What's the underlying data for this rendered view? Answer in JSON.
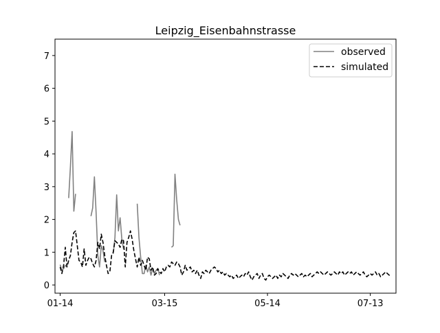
{
  "chart_data": {
    "type": "line",
    "title": "Leipzig_Eisenbahnstrasse",
    "xlabel": "",
    "ylabel": "",
    "x_ticks": [
      "01-14",
      "03-15",
      "05-14",
      "07-13"
    ],
    "y_ticks": [
      0,
      1,
      2,
      3,
      4,
      5,
      6,
      7
    ],
    "ylim": [
      -0.25,
      7.5
    ],
    "legend_position": "top-right",
    "series": [
      {
        "name": "observed",
        "style": "solid",
        "color": "#808080",
        "segments": [
          [
            [
              "01-14",
              0.62
            ],
            [
              "01-15",
              0.45
            ],
            [
              "01-16",
              0.5
            ],
            [
              "01-17",
              0.6
            ],
            [
              "01-18",
              0.55
            ]
          ],
          [
            [
              "01-19",
              2.65
            ],
            [
              "01-20",
              3.6
            ],
            [
              "01-21",
              4.68
            ],
            [
              "01-22",
              2.25
            ],
            [
              "01-23",
              2.78
            ]
          ],
          [
            [
              "02-01",
              2.1
            ],
            [
              "02-02",
              2.35
            ],
            [
              "02-03",
              3.3
            ],
            [
              "02-04",
              2.2
            ],
            [
              "02-05",
              0.9
            ],
            [
              "02-06",
              0.55
            ],
            [
              "02-07",
              1.2
            ],
            [
              "02-08",
              1.05
            ],
            [
              "02-09",
              0.7
            ]
          ],
          [
            [
              "02-14",
              0.95
            ],
            [
              "02-15",
              1.45
            ],
            [
              "02-16",
              2.75
            ],
            [
              "02-17",
              1.65
            ],
            [
              "02-18",
              2.05
            ],
            [
              "02-19",
              1.4
            ],
            [
              "02-20",
              1.1
            ]
          ],
          [
            [
              "02-28",
              2.48
            ],
            [
              "02-29",
              1.45
            ],
            [
              "03-01",
              0.85
            ],
            [
              "03-02",
              0.35
            ],
            [
              "03-03",
              0.35
            ],
            [
              "03-04",
              0.6
            ],
            [
              "03-05",
              0.4
            ],
            [
              "03-06",
              0.55
            ],
            [
              "03-07",
              0.3
            ],
            [
              "03-08",
              0.5
            ],
            [
              "03-09",
              0.35
            ],
            [
              "03-10",
              0.45
            ],
            [
              "03-11",
              0.5
            ],
            [
              "03-12",
              0.3
            ]
          ],
          [
            [
              "03-19",
              1.15
            ],
            [
              "03-20",
              1.2
            ],
            [
              "03-21",
              3.38
            ],
            [
              "03-22",
              2.6
            ],
            [
              "03-23",
              2.0
            ],
            [
              "03-24",
              1.82
            ]
          ]
        ]
      },
      {
        "name": "simulated",
        "style": "dashed",
        "color": "#000000",
        "points": [
          [
            "01-14",
            0.55
          ],
          [
            "01-15",
            0.35
          ],
          [
            "01-16",
            0.6
          ],
          [
            "01-17",
            1.15
          ],
          [
            "01-18",
            0.55
          ],
          [
            "01-19",
            0.75
          ],
          [
            "01-20",
            0.9
          ],
          [
            "01-21",
            1.3
          ],
          [
            "01-22",
            1.6
          ],
          [
            "01-23",
            1.65
          ],
          [
            "01-24",
            1.2
          ],
          [
            "01-25",
            0.75
          ],
          [
            "01-26",
            0.7
          ],
          [
            "01-27",
            0.55
          ],
          [
            "01-28",
            1.1
          ],
          [
            "01-29",
            0.6
          ],
          [
            "01-30",
            0.75
          ],
          [
            "01-31",
            0.85
          ],
          [
            "02-01",
            0.8
          ],
          [
            "02-02",
            0.65
          ],
          [
            "02-03",
            0.55
          ],
          [
            "02-04",
            0.75
          ],
          [
            "02-05",
            1.3
          ],
          [
            "02-06",
            1.1
          ],
          [
            "02-07",
            1.55
          ],
          [
            "02-08",
            1.3
          ],
          [
            "02-09",
            0.9
          ],
          [
            "02-10",
            0.6
          ],
          [
            "02-11",
            0.35
          ],
          [
            "02-12",
            0.4
          ],
          [
            "02-13",
            0.9
          ],
          [
            "02-14",
            1.0
          ],
          [
            "02-15",
            1.35
          ],
          [
            "02-16",
            1.3
          ],
          [
            "02-17",
            1.25
          ],
          [
            "02-18",
            1.15
          ],
          [
            "02-19",
            1.4
          ],
          [
            "02-20",
            1.35
          ],
          [
            "02-21",
            0.55
          ],
          [
            "02-22",
            1.3
          ],
          [
            "02-23",
            1.45
          ],
          [
            "02-24",
            1.65
          ],
          [
            "02-25",
            1.4
          ],
          [
            "02-26",
            1.05
          ],
          [
            "02-27",
            0.8
          ],
          [
            "02-28",
            0.55
          ],
          [
            "02-29",
            0.85
          ],
          [
            "03-01",
            0.6
          ],
          [
            "03-02",
            0.75
          ],
          [
            "03-03",
            0.6
          ],
          [
            "03-04",
            0.45
          ],
          [
            "03-05",
            0.85
          ],
          [
            "03-06",
            0.8
          ],
          [
            "03-07",
            0.45
          ],
          [
            "03-08",
            0.55
          ],
          [
            "03-09",
            0.3
          ],
          [
            "03-10",
            0.35
          ],
          [
            "03-11",
            0.5
          ],
          [
            "03-12",
            0.4
          ],
          [
            "03-13",
            0.35
          ],
          [
            "03-14",
            0.5
          ],
          [
            "03-15",
            0.4
          ],
          [
            "03-16",
            0.55
          ],
          [
            "03-17",
            0.6
          ],
          [
            "03-18",
            0.55
          ],
          [
            "03-19",
            0.7
          ],
          [
            "03-20",
            0.65
          ],
          [
            "03-21",
            0.6
          ],
          [
            "03-22",
            0.7
          ],
          [
            "03-23",
            0.65
          ],
          [
            "03-24",
            0.55
          ],
          [
            "03-25",
            0.3
          ],
          [
            "03-26",
            0.4
          ],
          [
            "03-27",
            0.6
          ],
          [
            "03-28",
            0.45
          ],
          [
            "03-29",
            0.5
          ],
          [
            "03-30",
            0.55
          ],
          [
            "03-31",
            0.4
          ],
          [
            "04-01",
            0.45
          ],
          [
            "04-02",
            0.35
          ],
          [
            "04-03",
            0.45
          ],
          [
            "04-04",
            0.3
          ],
          [
            "04-05",
            0.2
          ],
          [
            "04-06",
            0.4
          ],
          [
            "04-07",
            0.35
          ],
          [
            "04-08",
            0.45
          ],
          [
            "04-09",
            0.4
          ],
          [
            "04-10",
            0.35
          ],
          [
            "04-11",
            0.45
          ],
          [
            "04-12",
            0.5
          ],
          [
            "04-13",
            0.55
          ],
          [
            "04-14",
            0.5
          ],
          [
            "04-15",
            0.4
          ],
          [
            "04-16",
            0.45
          ],
          [
            "04-17",
            0.35
          ],
          [
            "04-18",
            0.4
          ],
          [
            "04-19",
            0.3
          ],
          [
            "04-20",
            0.35
          ],
          [
            "04-21",
            0.3
          ],
          [
            "04-22",
            0.25
          ],
          [
            "04-23",
            0.3
          ],
          [
            "04-24",
            0.2
          ],
          [
            "04-25",
            0.25
          ],
          [
            "04-26",
            0.3
          ],
          [
            "04-27",
            0.2
          ],
          [
            "04-28",
            0.25
          ],
          [
            "04-29",
            0.3
          ],
          [
            "04-30",
            0.25
          ],
          [
            "05-01",
            0.35
          ],
          [
            "05-02",
            0.3
          ],
          [
            "05-03",
            0.4
          ],
          [
            "05-04",
            0.25
          ],
          [
            "05-05",
            0.15
          ],
          [
            "05-06",
            0.25
          ],
          [
            "05-07",
            0.3
          ],
          [
            "05-08",
            0.35
          ],
          [
            "05-09",
            0.2
          ],
          [
            "05-10",
            0.3
          ],
          [
            "05-11",
            0.35
          ],
          [
            "05-12",
            0.2
          ],
          [
            "05-13",
            0.15
          ],
          [
            "05-14",
            0.25
          ],
          [
            "05-15",
            0.3
          ],
          [
            "05-16",
            0.25
          ],
          [
            "05-17",
            0.2
          ],
          [
            "05-18",
            0.25
          ],
          [
            "05-19",
            0.3
          ],
          [
            "05-20",
            0.2
          ],
          [
            "05-21",
            0.3
          ],
          [
            "05-22",
            0.25
          ],
          [
            "05-23",
            0.35
          ],
          [
            "05-24",
            0.3
          ],
          [
            "05-25",
            0.25
          ],
          [
            "05-26",
            0.2
          ],
          [
            "05-27",
            0.3
          ],
          [
            "05-28",
            0.35
          ],
          [
            "05-29",
            0.3
          ],
          [
            "05-30",
            0.35
          ],
          [
            "05-31",
            0.3
          ],
          [
            "06-01",
            0.25
          ],
          [
            "06-02",
            0.3
          ],
          [
            "06-03",
            0.35
          ],
          [
            "06-04",
            0.25
          ],
          [
            "06-05",
            0.3
          ],
          [
            "06-06",
            0.25
          ],
          [
            "06-07",
            0.3
          ],
          [
            "06-08",
            0.35
          ],
          [
            "06-09",
            0.25
          ],
          [
            "06-10",
            0.3
          ],
          [
            "06-11",
            0.35
          ],
          [
            "06-12",
            0.4
          ],
          [
            "06-13",
            0.35
          ],
          [
            "06-14",
            0.4
          ],
          [
            "06-15",
            0.35
          ],
          [
            "06-16",
            0.3
          ],
          [
            "06-17",
            0.35
          ],
          [
            "06-18",
            0.4
          ],
          [
            "06-19",
            0.35
          ],
          [
            "06-20",
            0.3
          ],
          [
            "06-21",
            0.35
          ],
          [
            "06-22",
            0.4
          ],
          [
            "06-23",
            0.35
          ],
          [
            "06-24",
            0.3
          ],
          [
            "06-25",
            0.4
          ],
          [
            "06-26",
            0.35
          ],
          [
            "06-27",
            0.4
          ],
          [
            "06-28",
            0.3
          ],
          [
            "06-29",
            0.35
          ],
          [
            "06-30",
            0.4
          ],
          [
            "07-01",
            0.35
          ],
          [
            "07-02",
            0.4
          ],
          [
            "07-03",
            0.3
          ],
          [
            "07-04",
            0.35
          ],
          [
            "07-05",
            0.4
          ],
          [
            "07-06",
            0.35
          ],
          [
            "07-07",
            0.3
          ],
          [
            "07-08",
            0.35
          ],
          [
            "07-09",
            0.4
          ],
          [
            "07-10",
            0.3
          ],
          [
            "07-11",
            0.25
          ],
          [
            "07-12",
            0.3
          ],
          [
            "07-13",
            0.35
          ],
          [
            "07-14",
            0.3
          ],
          [
            "07-15",
            0.35
          ],
          [
            "07-16",
            0.4
          ],
          [
            "07-17",
            0.3
          ],
          [
            "07-18",
            0.35
          ],
          [
            "07-19",
            0.25
          ],
          [
            "07-20",
            0.3
          ],
          [
            "07-21",
            0.35
          ],
          [
            "07-22",
            0.4
          ],
          [
            "07-23",
            0.35
          ],
          [
            "07-24",
            0.3
          ],
          [
            "07-25",
            0.25
          ]
        ]
      }
    ]
  }
}
